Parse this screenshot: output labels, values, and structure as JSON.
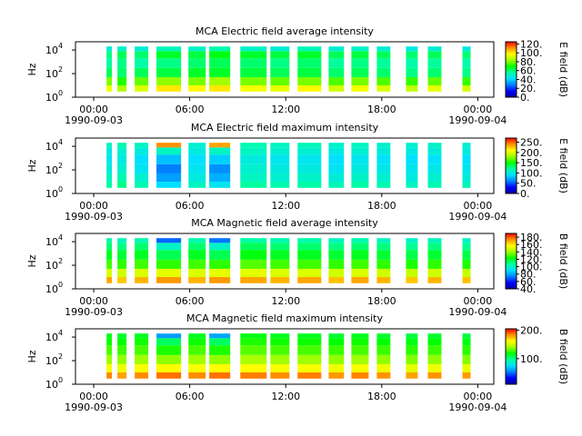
{
  "chart_data": [
    {
      "type": "spectrogram",
      "title": "MCA  Electric field average intensity",
      "ylabel": "Hz",
      "colorbar_label": "E field (dB)",
      "xlim": [
        -1.14,
        25.0
      ],
      "xticks": [
        {
          "value": 0,
          "label": "00:00"
        },
        {
          "value": 6,
          "label": "06:00"
        },
        {
          "value": 12,
          "label": "12:00"
        },
        {
          "value": 18,
          "label": "18:00"
        },
        {
          "value": 24,
          "label": "00:00"
        }
      ],
      "xtick_dates": [
        {
          "value": 0,
          "label": "1990-09-03"
        },
        {
          "value": 24,
          "label": "1990-09-04"
        }
      ],
      "ylim": [
        1,
        50000
      ],
      "log_y": true,
      "yticks": [
        {
          "value": 1,
          "label": "10",
          "exponent": "0"
        },
        {
          "value": 100,
          "label": "10",
          "exponent": "2"
        },
        {
          "value": 10000,
          "label": "10",
          "exponent": "4"
        }
      ],
      "clim": [
        0,
        125
      ],
      "cticks": [
        {
          "value": 0,
          "label": "0."
        },
        {
          "value": 20,
          "label": "20."
        },
        {
          "value": 40,
          "label": "40."
        },
        {
          "value": 60,
          "label": "60."
        },
        {
          "value": 80,
          "label": "80."
        },
        {
          "value": 100,
          "label": "100."
        },
        {
          "value": 120,
          "label": "120."
        }
      ],
      "colormap": [
        "#0000a0",
        "#0000ff",
        "#0080ff",
        "#00e0ff",
        "#00ffa0",
        "#00ff00",
        "#a0ff00",
        "#ffff00",
        "#ff9000",
        "#ff0000"
      ],
      "freq_bins": [
        3,
        10,
        50,
        300,
        2000,
        8000,
        20000
      ],
      "spans": [
        [
          0.8,
          1.14
        ],
        [
          1.48,
          2.05
        ],
        [
          2.56,
          3.41
        ],
        [
          3.92,
          5.46
        ],
        [
          5.92,
          7.0
        ],
        [
          7.22,
          8.53
        ],
        [
          9.16,
          10.81
        ],
        [
          11.04,
          12.23
        ],
        [
          12.74,
          14.22
        ],
        [
          14.68,
          15.64
        ],
        [
          16.1,
          17.18
        ],
        [
          17.69,
          18.54
        ],
        [
          19.51,
          20.25
        ],
        [
          20.88,
          21.73
        ],
        [
          23.04,
          23.55
        ]
      ],
      "values": [
        [
          95,
          80,
          62,
          55,
          58,
          48
        ],
        [
          85,
          72,
          60,
          58,
          62,
          50
        ],
        [
          92,
          78,
          62,
          55,
          60,
          48
        ],
        [
          100,
          82,
          64,
          58,
          66,
          52
        ],
        [
          98,
          80,
          66,
          60,
          64,
          50
        ],
        [
          100,
          84,
          66,
          62,
          68,
          54
        ],
        [
          96,
          80,
          64,
          60,
          66,
          50
        ],
        [
          94,
          78,
          62,
          58,
          64,
          48
        ],
        [
          98,
          80,
          64,
          60,
          66,
          52
        ],
        [
          90,
          76,
          60,
          56,
          62,
          48
        ],
        [
          96,
          80,
          62,
          58,
          64,
          50
        ],
        [
          92,
          76,
          60,
          56,
          62,
          48
        ],
        [
          88,
          74,
          58,
          54,
          60,
          46
        ],
        [
          94,
          78,
          60,
          56,
          62,
          48
        ],
        [
          90,
          74,
          58,
          54,
          60,
          46
        ]
      ]
    },
    {
      "type": "spectrogram",
      "title": "MCA  Electric field maximum intensity",
      "ylabel": "Hz",
      "colorbar_label": "E field (dB)",
      "xlim": [
        -1.14,
        25.0
      ],
      "xticks": [
        {
          "value": 0,
          "label": "00:00"
        },
        {
          "value": 6,
          "label": "06:00"
        },
        {
          "value": 12,
          "label": "12:00"
        },
        {
          "value": 18,
          "label": "18:00"
        },
        {
          "value": 24,
          "label": "00:00"
        }
      ],
      "xtick_dates": [
        {
          "value": 0,
          "label": "1990-09-03"
        },
        {
          "value": 24,
          "label": "1990-09-04"
        }
      ],
      "ylim": [
        1,
        50000
      ],
      "log_y": true,
      "yticks": [
        {
          "value": 1,
          "label": "10",
          "exponent": "0"
        },
        {
          "value": 100,
          "label": "10",
          "exponent": "2"
        },
        {
          "value": 10000,
          "label": "10",
          "exponent": "4"
        }
      ],
      "clim": [
        0,
        270
      ],
      "cticks": [
        {
          "value": 0,
          "label": "0."
        },
        {
          "value": 50,
          "label": "50."
        },
        {
          "value": 100,
          "label": "100."
        },
        {
          "value": 150,
          "label": "150."
        },
        {
          "value": 200,
          "label": "200."
        },
        {
          "value": 250,
          "label": "250."
        }
      ],
      "colormap": [
        "#0000a0",
        "#0000ff",
        "#0080ff",
        "#00e0ff",
        "#00ffa0",
        "#00ff00",
        "#a0ff00",
        "#ffff00",
        "#ff9000",
        "#ff0000"
      ],
      "freq_bins": [
        3,
        10,
        50,
        300,
        2000,
        8000,
        20000
      ],
      "spans": [
        [
          0.8,
          1.14
        ],
        [
          1.48,
          2.05
        ],
        [
          2.56,
          3.41
        ],
        [
          3.92,
          5.46
        ],
        [
          5.92,
          7.0
        ],
        [
          7.22,
          8.53
        ],
        [
          9.16,
          10.81
        ],
        [
          11.04,
          12.23
        ],
        [
          12.74,
          14.22
        ],
        [
          14.68,
          15.64
        ],
        [
          16.1,
          17.18
        ],
        [
          17.69,
          18.54
        ],
        [
          19.51,
          20.25
        ],
        [
          20.88,
          21.73
        ],
        [
          23.04,
          23.55
        ]
      ],
      "values": [
        [
          120,
          110,
          100,
          95,
          100,
          110
        ],
        [
          125,
          115,
          105,
          100,
          105,
          115
        ],
        [
          115,
          105,
          95,
          90,
          100,
          110
        ],
        [
          90,
          70,
          60,
          80,
          110,
          240
        ],
        [
          110,
          100,
          95,
          90,
          100,
          105
        ],
        [
          95,
          75,
          65,
          85,
          110,
          235
        ],
        [
          120,
          110,
          105,
          100,
          110,
          115
        ],
        [
          115,
          105,
          100,
          95,
          105,
          110
        ],
        [
          118,
          108,
          100,
          95,
          105,
          112
        ],
        [
          112,
          102,
          95,
          90,
          100,
          108
        ],
        [
          118,
          108,
          100,
          95,
          105,
          110
        ],
        [
          115,
          105,
          98,
          92,
          102,
          108
        ],
        [
          110,
          100,
          95,
          90,
          100,
          105
        ],
        [
          115,
          105,
          98,
          92,
          102,
          108
        ],
        [
          112,
          102,
          95,
          90,
          100,
          105
        ]
      ]
    },
    {
      "type": "spectrogram",
      "title": "MCA  Magnetic field average intensity",
      "ylabel": "Hz",
      "colorbar_label": "B field (dB)",
      "xlim": [
        -1.14,
        25.0
      ],
      "xticks": [
        {
          "value": 0,
          "label": "00:00"
        },
        {
          "value": 6,
          "label": "06:00"
        },
        {
          "value": 12,
          "label": "12:00"
        },
        {
          "value": 18,
          "label": "18:00"
        },
        {
          "value": 24,
          "label": "00:00"
        }
      ],
      "xtick_dates": [
        {
          "value": 0,
          "label": "1990-09-03"
        },
        {
          "value": 24,
          "label": "1990-09-04"
        }
      ],
      "ylim": [
        1,
        50000
      ],
      "log_y": true,
      "yticks": [
        {
          "value": 1,
          "label": "10",
          "exponent": "0"
        },
        {
          "value": 100,
          "label": "10",
          "exponent": "2"
        },
        {
          "value": 10000,
          "label": "10",
          "exponent": "4"
        }
      ],
      "clim": [
        40,
        190
      ],
      "cticks": [
        {
          "value": 40,
          "label": "40."
        },
        {
          "value": 60,
          "label": "60."
        },
        {
          "value": 80,
          "label": "80."
        },
        {
          "value": 100,
          "label": "100."
        },
        {
          "value": 120,
          "label": "120."
        },
        {
          "value": 140,
          "label": "140."
        },
        {
          "value": 160,
          "label": "160."
        },
        {
          "value": 180,
          "label": "180."
        }
      ],
      "colormap": [
        "#0000a0",
        "#0000ff",
        "#0080ff",
        "#00e0ff",
        "#00ffa0",
        "#00ff00",
        "#a0ff00",
        "#ffff00",
        "#ff9000",
        "#ff0000"
      ],
      "freq_bins": [
        3,
        10,
        50,
        300,
        2000,
        8000,
        20000
      ],
      "spans": [
        [
          0.8,
          1.14
        ],
        [
          1.48,
          2.05
        ],
        [
          2.56,
          3.41
        ],
        [
          3.92,
          5.46
        ],
        [
          5.92,
          7.0
        ],
        [
          7.22,
          8.53
        ],
        [
          9.16,
          10.81
        ],
        [
          11.04,
          12.23
        ],
        [
          12.74,
          14.22
        ],
        [
          14.68,
          15.64
        ],
        [
          16.1,
          17.18
        ],
        [
          17.69,
          18.54
        ],
        [
          19.51,
          20.25
        ],
        [
          20.88,
          21.73
        ],
        [
          23.04,
          23.55
        ]
      ],
      "values": [
        [
          170,
          150,
          130,
          120,
          112,
          105
        ],
        [
          165,
          148,
          128,
          118,
          110,
          102
        ],
        [
          168,
          150,
          130,
          120,
          112,
          104
        ],
        [
          172,
          152,
          128,
          115,
          100,
          70
        ],
        [
          168,
          150,
          130,
          120,
          112,
          104
        ],
        [
          172,
          152,
          128,
          115,
          100,
          72
        ],
        [
          170,
          152,
          132,
          122,
          114,
          106
        ],
        [
          168,
          150,
          130,
          120,
          112,
          104
        ],
        [
          170,
          150,
          130,
          120,
          112,
          105
        ],
        [
          166,
          148,
          128,
          118,
          110,
          102
        ],
        [
          170,
          150,
          130,
          120,
          112,
          104
        ],
        [
          168,
          148,
          128,
          118,
          110,
          102
        ],
        [
          165,
          146,
          126,
          116,
          108,
          100
        ],
        [
          168,
          148,
          128,
          118,
          110,
          102
        ],
        [
          166,
          146,
          126,
          116,
          108,
          100
        ]
      ]
    },
    {
      "type": "spectrogram",
      "title": "MCA  Magnetic field maximum intensity",
      "ylabel": "Hz",
      "colorbar_label": "B field (dB)",
      "xlim": [
        -1.14,
        25.0
      ],
      "xticks": [
        {
          "value": 0,
          "label": "00:00"
        },
        {
          "value": 6,
          "label": "06:00"
        },
        {
          "value": 12,
          "label": "12:00"
        },
        {
          "value": 18,
          "label": "18:00"
        },
        {
          "value": 24,
          "label": "00:00"
        }
      ],
      "xtick_dates": [
        {
          "value": 0,
          "label": "1990-09-03"
        },
        {
          "value": 24,
          "label": "1990-09-04"
        }
      ],
      "ylim": [
        1,
        50000
      ],
      "log_y": true,
      "yticks": [
        {
          "value": 1,
          "label": "10",
          "exponent": "0"
        },
        {
          "value": 100,
          "label": "10",
          "exponent": "2"
        },
        {
          "value": 10000,
          "label": "10",
          "exponent": "4"
        }
      ],
      "clim": [
        10,
        205
      ],
      "cticks": [
        {
          "value": 100,
          "label": "100."
        },
        {
          "value": 200,
          "label": "200."
        }
      ],
      "colormap": [
        "#0000a0",
        "#0000ff",
        "#0080ff",
        "#00e0ff",
        "#00ffa0",
        "#00ff00",
        "#a0ff00",
        "#ffff00",
        "#ff9000",
        "#ff0000"
      ],
      "freq_bins": [
        3,
        10,
        50,
        300,
        2000,
        8000,
        20000
      ],
      "spans": [
        [
          0.8,
          1.14
        ],
        [
          1.48,
          2.05
        ],
        [
          2.56,
          3.41
        ],
        [
          3.92,
          5.46
        ],
        [
          5.92,
          7.0
        ],
        [
          7.22,
          8.53
        ],
        [
          9.16,
          10.81
        ],
        [
          11.04,
          12.23
        ],
        [
          12.74,
          14.22
        ],
        [
          14.68,
          15.64
        ],
        [
          16.1,
          17.18
        ],
        [
          17.69,
          18.54
        ],
        [
          19.51,
          20.25
        ],
        [
          20.88,
          21.73
        ],
        [
          23.04,
          23.55
        ]
      ],
      "values": [
        [
          185,
          160,
          140,
          128,
          120,
          114
        ],
        [
          180,
          158,
          138,
          126,
          118,
          112
        ],
        [
          184,
          160,
          140,
          128,
          120,
          114
        ],
        [
          188,
          162,
          138,
          122,
          105,
          60
        ],
        [
          184,
          160,
          140,
          128,
          120,
          114
        ],
        [
          188,
          162,
          138,
          122,
          105,
          62
        ],
        [
          186,
          162,
          142,
          130,
          122,
          116
        ],
        [
          184,
          160,
          140,
          128,
          120,
          114
        ],
        [
          186,
          160,
          140,
          128,
          120,
          114
        ],
        [
          182,
          158,
          138,
          126,
          118,
          112
        ],
        [
          185,
          160,
          140,
          128,
          120,
          114
        ],
        [
          183,
          158,
          138,
          126,
          118,
          112
        ],
        [
          180,
          156,
          136,
          124,
          116,
          110
        ],
        [
          183,
          158,
          138,
          126,
          118,
          112
        ],
        [
          181,
          156,
          136,
          124,
          116,
          110
        ]
      ]
    }
  ]
}
